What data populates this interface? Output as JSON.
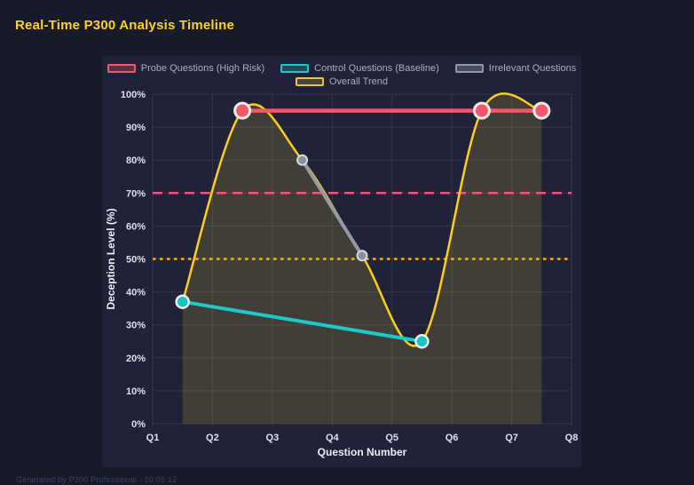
{
  "title": "Real-Time P300 Analysis Timeline",
  "footer": "Generated by P300 Professional - 10:05:12",
  "colors": {
    "page_bg": "#171a28",
    "panel_bg": "#1f2239",
    "grid": "rgba(255,255,255,0.09)",
    "title": "#ffd21e",
    "tick_label": "#dde0ea",
    "axis_title": "#eef0f6",
    "legend_label": "#a9aebd",
    "probe_red": "#f4566a",
    "control_teal": "#1ec9c9",
    "irrelevant_gray": "#939aa6",
    "trend_gold": "#fdd017"
  },
  "legend": {
    "rows": [
      [
        {
          "label": "Probe Questions (High Risk)",
          "color": "#f4566a",
          "fill": "rgba(244,86,106,0.28)"
        },
        {
          "label": "Control Questions (Baseline)",
          "color": "#1ec9c9",
          "fill": "rgba(30,201,201,0.25)"
        },
        {
          "label": "Irrelevant Questions",
          "color": "#939aa6",
          "fill": "rgba(147,154,166,0.35)"
        }
      ],
      [
        {
          "label": "Overall Trend",
          "color": "#e9c53b",
          "fill": "rgba(233,197,59,0.22)"
        }
      ]
    ]
  },
  "chart_data": {
    "type": "line",
    "title": "Real-Time P300 Analysis Timeline",
    "xlabel": "Question Number",
    "ylabel": "Deception Level (%)",
    "x_ticks": [
      "Q1",
      "Q2",
      "Q3",
      "Q4",
      "Q5",
      "Q6",
      "Q7",
      "Q8"
    ],
    "x_tick_values": [
      1,
      2,
      3,
      4,
      5,
      6,
      7,
      8
    ],
    "y_ticks": [
      "0%",
      "10%",
      "20%",
      "30%",
      "40%",
      "50%",
      "60%",
      "70%",
      "80%",
      "90%",
      "100%"
    ],
    "y_tick_values": [
      0,
      10,
      20,
      30,
      40,
      50,
      60,
      70,
      80,
      90,
      100
    ],
    "xlim": [
      1,
      8
    ],
    "ylim": [
      0,
      100
    ],
    "grid": true,
    "legend_position": "top",
    "series": [
      {
        "name": "Overall Trend",
        "color": "#fdd017",
        "x": [
          1.5,
          2.5,
          3.5,
          4.5,
          5.5,
          6.5,
          7.5
        ],
        "values": [
          37,
          95,
          80,
          51,
          25,
          95,
          95
        ],
        "smooth": true,
        "line_width": 2.5,
        "area_fill": "rgba(224,192,50,0.18)",
        "points": false
      },
      {
        "name": "Irrelevant Questions",
        "color": "#939aa6",
        "x": [
          3.5,
          4.5
        ],
        "values": [
          80,
          51
        ],
        "line_width": 4,
        "point_radius": 5.5,
        "point_fill": "#8a919d",
        "point_ring": "#d7dae1",
        "point_ring_width": 2,
        "points": true
      },
      {
        "name": "Control Questions (Baseline)",
        "color": "#1ec9c9",
        "x": [
          1.5,
          5.5
        ],
        "values": [
          37,
          25
        ],
        "line_width": 4,
        "point_radius": 7,
        "point_fill": "#17c3c3",
        "point_ring": "#eef0f4",
        "point_ring_width": 2.5,
        "points": true
      },
      {
        "name": "Probe Questions (High Risk)",
        "color": "#f4566a",
        "x": [
          2.5,
          6.5,
          7.5
        ],
        "values": [
          95,
          95,
          95
        ],
        "line_width": 4.5,
        "point_radius": 8.5,
        "point_fill": "#f4566a",
        "point_ring": "#f3eaec",
        "point_ring_width": 3,
        "points": true
      }
    ],
    "thresholds": [
      {
        "value": 70,
        "color": "#ee5677",
        "style": "dashed",
        "line_width": 2.5
      },
      {
        "value": 50,
        "color": "#e8ba16",
        "style": "dotted",
        "line_width": 2.5
      }
    ]
  }
}
